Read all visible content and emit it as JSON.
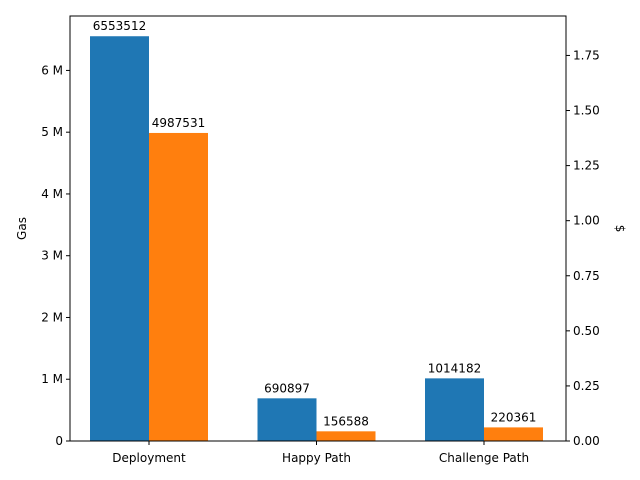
{
  "chart_data": {
    "type": "bar",
    "title": "",
    "xlabel": "",
    "ylabel": "Gas",
    "ylabel_right": "$",
    "categories": [
      "Deployment",
      "Happy Path",
      "Challenge Path"
    ],
    "series": [
      {
        "values": [
          6553512,
          690897,
          1014182
        ],
        "color": "#1f77b4"
      },
      {
        "values": [
          4987531,
          156588,
          220361
        ],
        "color": "#ff7f0e"
      }
    ],
    "ylim": [
      0,
      6881188
    ],
    "yticks": [
      0,
      1000000,
      2000000,
      3000000,
      4000000,
      5000000,
      6000000
    ],
    "ytick_labels": [
      "0",
      "1 M",
      "2 M",
      "3 M",
      "4 M",
      "5 M",
      "6 M"
    ],
    "y2lim": [
      0,
      1.929
    ],
    "y2ticks": [
      0.0,
      0.25,
      0.5,
      0.75,
      1.0,
      1.25,
      1.5,
      1.75
    ],
    "y2tick_labels": [
      "0.00",
      "0.25",
      "0.50",
      "0.75",
      "1.00",
      "1.25",
      "1.50",
      "1.75"
    ],
    "data_labels": [
      [
        "6553512",
        "690897",
        "1014182"
      ],
      [
        "4987531",
        "156588",
        "220361"
      ]
    ],
    "grid": false,
    "legend": "none"
  }
}
